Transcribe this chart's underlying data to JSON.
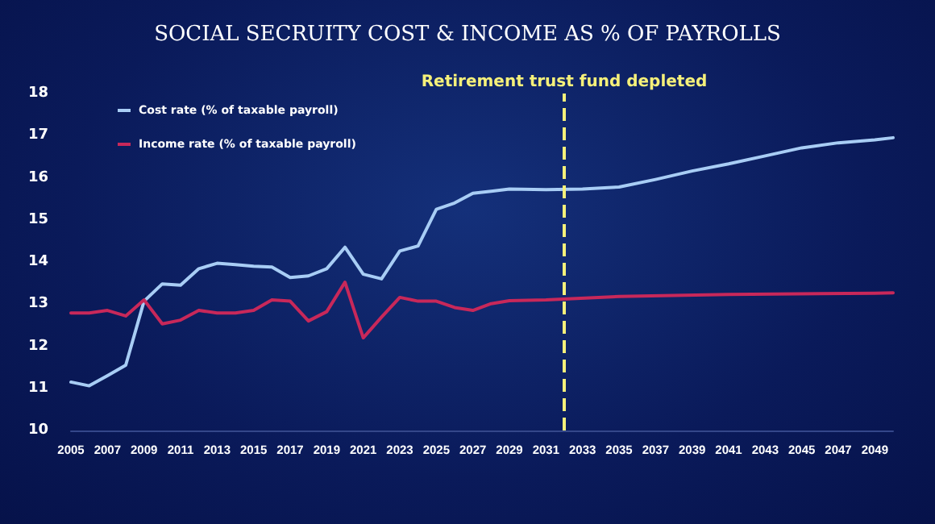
{
  "chart_data": {
    "type": "line",
    "title": "SOCIAL SECRUITY COST & INCOME AS % OF PAYROLLS",
    "xlim": [
      2005,
      2050
    ],
    "xticks": [
      2005,
      2007,
      2009,
      2011,
      2013,
      2015,
      2017,
      2019,
      2021,
      2023,
      2025,
      2027,
      2029,
      2031,
      2033,
      2035,
      2037,
      2039,
      2041,
      2043,
      2045,
      2047,
      2049
    ],
    "ylim": [
      10,
      18
    ],
    "yticks": [
      10,
      11,
      12,
      13,
      14,
      15,
      16,
      17,
      18
    ],
    "series": [
      {
        "name": "Cost rate (% of taxable payroll)",
        "color": "#a8cdf5",
        "x": [
          2005,
          2006,
          2007,
          2008,
          2009,
          2010,
          2011,
          2012,
          2013,
          2014,
          2015,
          2016,
          2017,
          2018,
          2019,
          2020,
          2021,
          2022,
          2023,
          2024,
          2025,
          2026,
          2027,
          2028,
          2029,
          2031,
          2033,
          2035,
          2037,
          2039,
          2041,
          2043,
          2045,
          2047,
          2049,
          2050
        ],
        "values": [
          11.15,
          11.06,
          11.3,
          11.55,
          13.07,
          13.48,
          13.45,
          13.84,
          13.97,
          13.94,
          13.9,
          13.88,
          13.63,
          13.67,
          13.84,
          14.35,
          13.71,
          13.6,
          14.26,
          14.38,
          15.25,
          15.4,
          15.63,
          15.68,
          15.73,
          15.72,
          15.73,
          15.78,
          15.96,
          16.16,
          16.33,
          16.52,
          16.71,
          16.83,
          16.9,
          16.95
        ]
      },
      {
        "name": "Income rate (% of taxable payroll)",
        "color": "#c8285a",
        "x": [
          2005,
          2006,
          2007,
          2008,
          2009,
          2010,
          2011,
          2012,
          2013,
          2014,
          2015,
          2016,
          2017,
          2018,
          2019,
          2020,
          2021,
          2022,
          2023,
          2024,
          2025,
          2026,
          2027,
          2028,
          2029,
          2031,
          2035,
          2041,
          2049,
          2050
        ],
        "values": [
          12.79,
          12.79,
          12.85,
          12.72,
          13.1,
          12.53,
          12.62,
          12.85,
          12.79,
          12.79,
          12.85,
          13.1,
          13.07,
          12.6,
          12.82,
          13.52,
          12.2,
          12.69,
          13.16,
          13.07,
          13.07,
          12.92,
          12.85,
          13.01,
          13.08,
          13.1,
          13.18,
          13.23,
          13.26,
          13.27
        ]
      }
    ],
    "ref_lines": [
      {
        "axis": "x",
        "value": 2032,
        "label": "Retirement trust fund depleted",
        "color": "#f5f07a",
        "line_style": "dashed"
      }
    ],
    "legend": "top left",
    "grid": false,
    "marker": "none",
    "line_style": "solid"
  }
}
